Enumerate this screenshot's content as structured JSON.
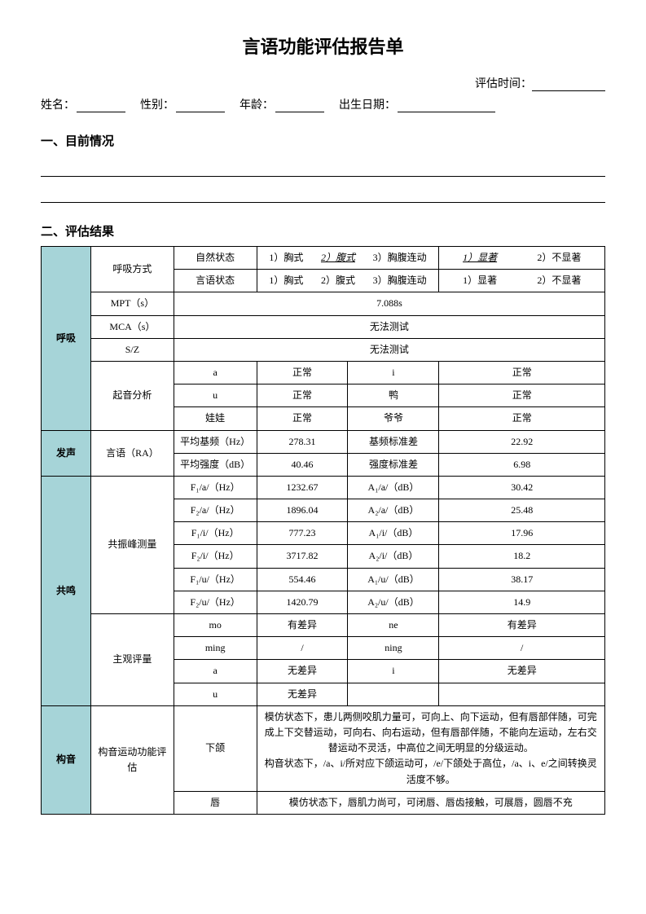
{
  "title": "言语功能评估报告单",
  "eval_time_label": "评估时间：",
  "info_labels": {
    "name": "姓名：",
    "sex": "性别：",
    "age": "年龄：",
    "dob": "出生日期："
  },
  "sections": {
    "current": "一、目前情况",
    "results": "二、评估结果"
  },
  "cats": {
    "breath": "呼吸",
    "voice": "发声",
    "resonance": "共鸣",
    "artic": "构音"
  },
  "row_labels": {
    "breath_mode": "呼吸方式",
    "mpt": "MPT（s）",
    "mca": "MCA（s）",
    "sz": "S/Z",
    "onset": "起音分析",
    "speech_ra": "言语（RA）",
    "formant": "共振峰测量",
    "subjective": "主观评量",
    "artic_func": "构音运动功能评估"
  },
  "breath_mode": {
    "natural_label": "自然状态",
    "speech_label": "言语状态",
    "opt1": "1）胸式",
    "opt2": "2）腹式",
    "opt2_plain": "2）腹式",
    "opt3": "3）胸腹连动",
    "sig1": "1）显著",
    "sig1_plain": "1）显著",
    "sig2": "2）不显著"
  },
  "mpt_val": "7.088s",
  "mca_val": "无法测试",
  "sz_val": "无法测试",
  "onset": {
    "a": "a",
    "a_res": "正常",
    "i": "i",
    "i_res": "正常",
    "u": "u",
    "u_res": "正常",
    "ya": "鸭",
    "ya_res": "正常",
    "wawa": "娃娃",
    "wawa_res": "正常",
    "yeye": "爷爷",
    "yeye_res": "正常"
  },
  "ra": {
    "f0_label": "平均基频（Hz）",
    "f0_val": "278.31",
    "f0sd_label": "基频标准差",
    "f0sd_val": "22.92",
    "int_label": "平均强度（dB）",
    "int_val": "40.46",
    "intsd_label": "强度标准差",
    "intsd_val": "6.98"
  },
  "formants": [
    {
      "fl": "F₁/a/（Hz）",
      "fv": "1232.67",
      "al": "A₁/a/（dB）",
      "av": "30.42"
    },
    {
      "fl": "F₂/a/（Hz）",
      "fv": "1896.04",
      "al": "A₂/a/（dB）",
      "av": "25.48"
    },
    {
      "fl": "F₁/i/（Hz）",
      "fv": "777.23",
      "al": "A₁/i/（dB）",
      "av": "17.96"
    },
    {
      "fl": "F₂/i/（Hz）",
      "fv": "3717.82",
      "al": "A₂/i/（dB）",
      "av": "18.2"
    },
    {
      "fl": "F₁/u/（Hz）",
      "fv": "554.46",
      "al": "A₁/u/（dB）",
      "av": "38.17"
    },
    {
      "fl": "F₂/u/（Hz）",
      "fv": "1420.79",
      "al": "A₂/u/（dB）",
      "av": "14.9"
    }
  ],
  "subj": [
    {
      "c1": "mo",
      "r1": "有差异",
      "c2": "ne",
      "r2": "有差异"
    },
    {
      "c1": "ming",
      "r1": "/",
      "c2": "ning",
      "r2": "/"
    },
    {
      "c1": "a",
      "r1": "无差异",
      "c2": "i",
      "r2": "无差异"
    },
    {
      "c1": "u",
      "r1": "无差异",
      "c2": "",
      "r2": ""
    }
  ],
  "artic": {
    "jaw_label": "下颌",
    "jaw_text": "模仿状态下，患儿两侧咬肌力量可，可向上、向下运动，但有唇部伴随，可完成上下交替运动，可向右、向右运动，但有唇部伴随，不能向左运动，左右交替运动不灵活，中高位之间无明显的分级运动。\n构音状态下，/a、i/所对应下颌运动可，/e/下颌处于高位，/a、i、e/之间转换灵活度不够。",
    "lip_label": "唇",
    "lip_text": "模仿状态下，唇肌力尚可，可闭唇、唇齿接触，可展唇，圆唇不充"
  }
}
